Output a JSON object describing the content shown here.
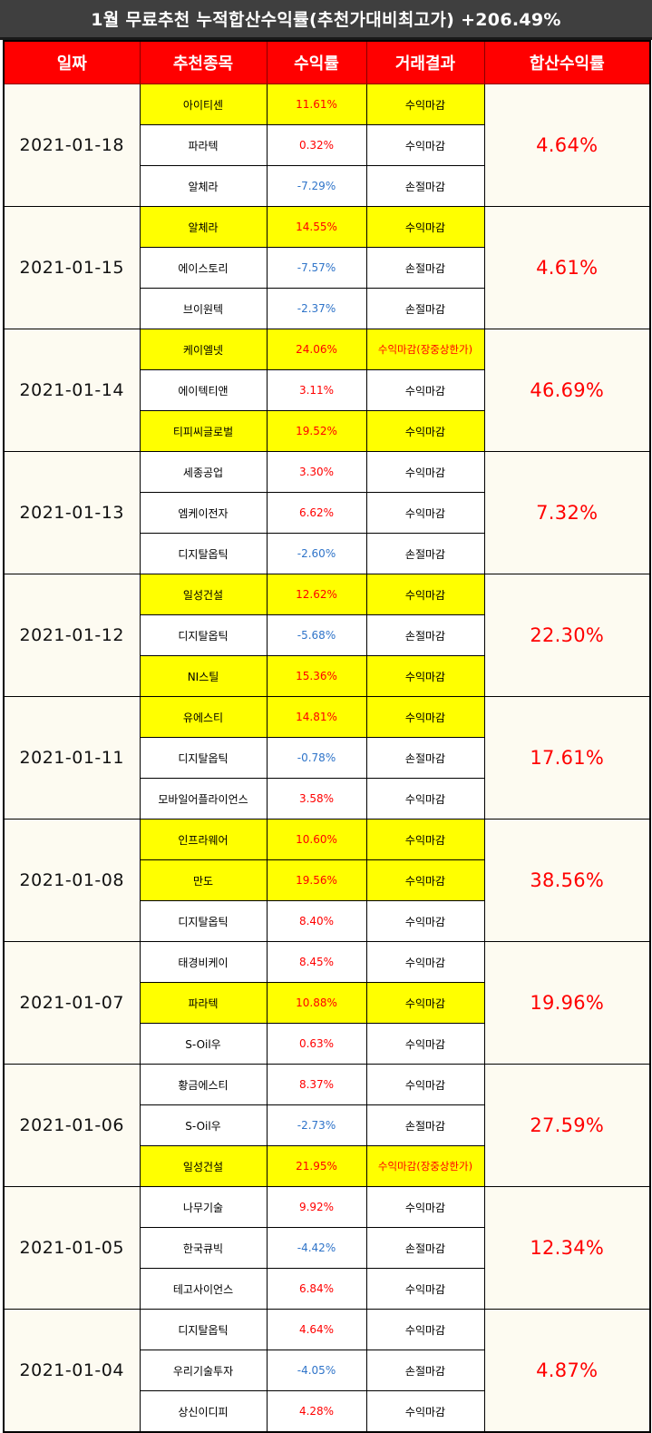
{
  "title": "1월 무료추천 누적합산수익률(추천가대비최고가) +206.49%",
  "headers": [
    "일짜",
    "추천종목",
    "수익률",
    "거래결과",
    "합산수익률"
  ],
  "colors": {
    "header_bg": "#ff0000",
    "title_bg": "#3f3f3f",
    "highlight": "#ffff00",
    "positive": "#ff0000",
    "negative": "#2f74c9"
  },
  "groups": [
    {
      "date": "2021-01-18",
      "total": "4.64%",
      "rows": [
        {
          "name": "아이티센",
          "rate": "11.61%",
          "result": "수익마감",
          "hl": true,
          "sign": "pos"
        },
        {
          "name": "파라텍",
          "rate": "0.32%",
          "result": "수익마감",
          "hl": false,
          "sign": "pos"
        },
        {
          "name": "알체라",
          "rate": "-7.29%",
          "result": "손절마감",
          "hl": false,
          "sign": "neg"
        }
      ]
    },
    {
      "date": "2021-01-15",
      "total": "4.61%",
      "rows": [
        {
          "name": "알체라",
          "rate": "14.55%",
          "result": "수익마감",
          "hl": true,
          "sign": "pos"
        },
        {
          "name": "에이스토리",
          "rate": "-7.57%",
          "result": "손절마감",
          "hl": false,
          "sign": "neg"
        },
        {
          "name": "브이원텍",
          "rate": "-2.37%",
          "result": "손절마감",
          "hl": false,
          "sign": "neg"
        }
      ]
    },
    {
      "date": "2021-01-14",
      "total": "46.69%",
      "rows": [
        {
          "name": "케이엘넷",
          "rate": "24.06%",
          "result": "수익마감(장중상한가)",
          "hl": true,
          "sign": "pos",
          "result_red": true
        },
        {
          "name": "에이텍티앤",
          "rate": "3.11%",
          "result": "수익마감",
          "hl": false,
          "sign": "pos"
        },
        {
          "name": "티피씨글로벌",
          "rate": "19.52%",
          "result": "수익마감",
          "hl": true,
          "sign": "pos"
        }
      ]
    },
    {
      "date": "2021-01-13",
      "total": "7.32%",
      "rows": [
        {
          "name": "세종공업",
          "rate": "3.30%",
          "result": "수익마감",
          "hl": false,
          "sign": "pos"
        },
        {
          "name": "엠케이전자",
          "rate": "6.62%",
          "result": "수익마감",
          "hl": false,
          "sign": "pos"
        },
        {
          "name": "디지탈옵틱",
          "rate": "-2.60%",
          "result": "손절마감",
          "hl": false,
          "sign": "neg"
        }
      ]
    },
    {
      "date": "2021-01-12",
      "total": "22.30%",
      "rows": [
        {
          "name": "일성건설",
          "rate": "12.62%",
          "result": "수익마감",
          "hl": true,
          "sign": "pos"
        },
        {
          "name": "디지탈옵틱",
          "rate": "-5.68%",
          "result": "손절마감",
          "hl": false,
          "sign": "neg"
        },
        {
          "name": "NI스틸",
          "rate": "15.36%",
          "result": "수익마감",
          "hl": true,
          "sign": "pos"
        }
      ]
    },
    {
      "date": "2021-01-11",
      "total": "17.61%",
      "rows": [
        {
          "name": "유에스티",
          "rate": "14.81%",
          "result": "수익마감",
          "hl": true,
          "sign": "pos"
        },
        {
          "name": "디지탈옵틱",
          "rate": "-0.78%",
          "result": "손절마감",
          "hl": false,
          "sign": "neg"
        },
        {
          "name": "모바일어플라이언스",
          "rate": "3.58%",
          "result": "수익마감",
          "hl": false,
          "sign": "pos"
        }
      ]
    },
    {
      "date": "2021-01-08",
      "total": "38.56%",
      "rows": [
        {
          "name": "인프라웨어",
          "rate": "10.60%",
          "result": "수익마감",
          "hl": true,
          "sign": "pos"
        },
        {
          "name": "만도",
          "rate": "19.56%",
          "result": "수익마감",
          "hl": true,
          "sign": "pos"
        },
        {
          "name": "디지탈옵틱",
          "rate": "8.40%",
          "result": "수익마감",
          "hl": false,
          "sign": "pos"
        }
      ]
    },
    {
      "date": "2021-01-07",
      "total": "19.96%",
      "rows": [
        {
          "name": "태경비케이",
          "rate": "8.45%",
          "result": "수익마감",
          "hl": false,
          "sign": "pos"
        },
        {
          "name": "파라텍",
          "rate": "10.88%",
          "result": "수익마감",
          "hl": true,
          "sign": "pos"
        },
        {
          "name": "S-Oil우",
          "rate": "0.63%",
          "result": "수익마감",
          "hl": false,
          "sign": "pos"
        }
      ]
    },
    {
      "date": "2021-01-06",
      "total": "27.59%",
      "rows": [
        {
          "name": "황금에스티",
          "rate": "8.37%",
          "result": "수익마감",
          "hl": false,
          "sign": "pos"
        },
        {
          "name": "S-Oil우",
          "rate": "-2.73%",
          "result": "손절마감",
          "hl": false,
          "sign": "neg"
        },
        {
          "name": "일성건설",
          "rate": "21.95%",
          "result": "수익마감(장중상한가)",
          "hl": true,
          "sign": "pos",
          "result_red": true
        }
      ]
    },
    {
      "date": "2021-01-05",
      "total": "12.34%",
      "rows": [
        {
          "name": "나무기술",
          "rate": "9.92%",
          "result": "수익마감",
          "hl": false,
          "sign": "pos"
        },
        {
          "name": "한국큐빅",
          "rate": "-4.42%",
          "result": "손절마감",
          "hl": false,
          "sign": "neg"
        },
        {
          "name": "테고사이언스",
          "rate": "6.84%",
          "result": "수익마감",
          "hl": false,
          "sign": "pos"
        }
      ]
    },
    {
      "date": "2021-01-04",
      "total": "4.87%",
      "rows": [
        {
          "name": "디지탈옵틱",
          "rate": "4.64%",
          "result": "수익마감",
          "hl": false,
          "sign": "pos"
        },
        {
          "name": "우리기술투자",
          "rate": "-4.05%",
          "result": "손절마감",
          "hl": false,
          "sign": "neg"
        },
        {
          "name": "상신이디피",
          "rate": "4.28%",
          "result": "수익마감",
          "hl": false,
          "sign": "pos"
        }
      ]
    }
  ]
}
